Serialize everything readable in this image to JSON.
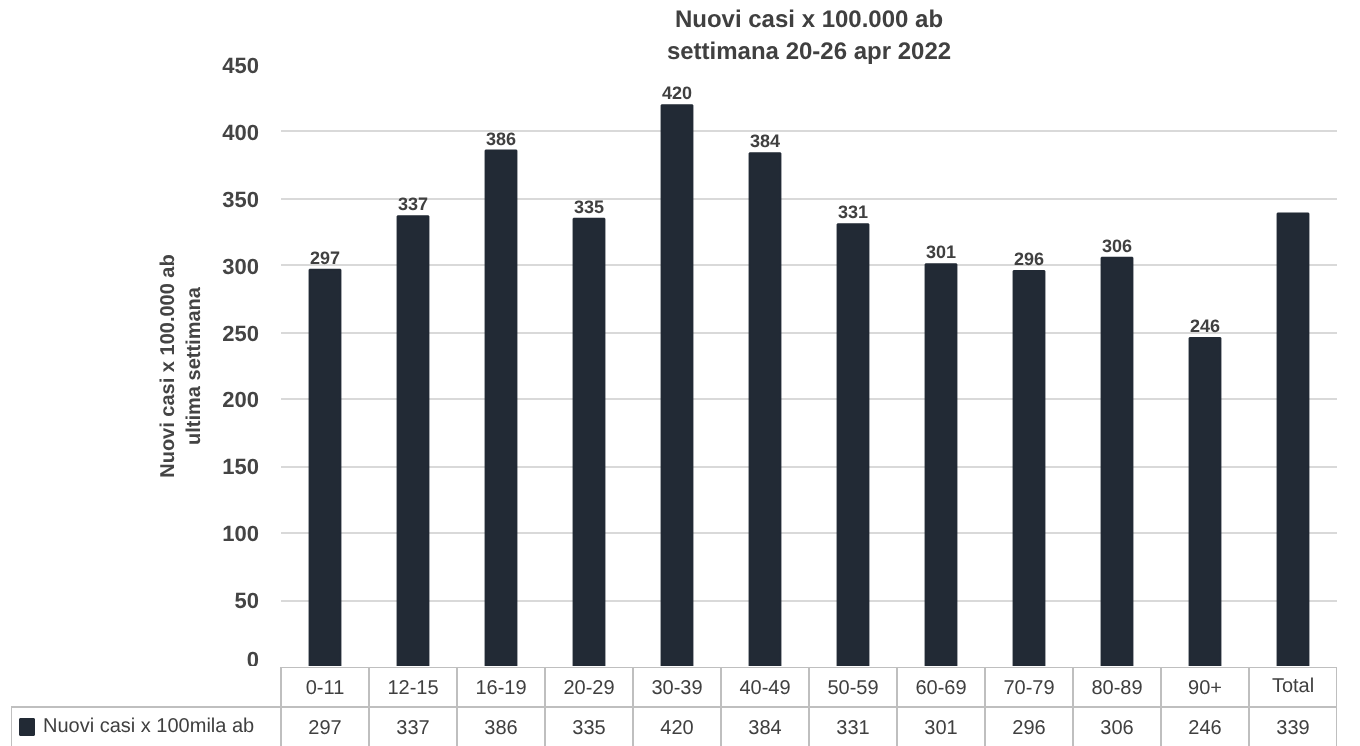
{
  "chart_data": {
    "type": "bar",
    "title": "Nuovi casi x 100.000 ab",
    "subtitle": "settimana 20-26 apr 2022",
    "ylabel": "Nuovi casi x 100.000 ab\nultima settimana",
    "categories": [
      "0-11",
      "12-15",
      "16-19",
      "20-29",
      "30-39",
      "40-49",
      "50-59",
      "60-69",
      "70-79",
      "80-89",
      "90+",
      "Total"
    ],
    "series": [
      {
        "name": "Nuovi casi x 100mila ab",
        "color": "#222a35",
        "values": [
          297,
          337,
          386,
          335,
          420,
          384,
          331,
          301,
          296,
          306,
          246,
          339
        ]
      }
    ],
    "annotations": [
      {
        "text": "297",
        "x": "0-11",
        "y": 297
      },
      {
        "text": "337",
        "x": "12-15",
        "y": 337
      },
      {
        "text": "386",
        "x": "16-19",
        "y": 386
      },
      {
        "text": "335",
        "x": "20-29",
        "y": 335
      },
      {
        "text": "420",
        "x": "30-39",
        "y": 420
      },
      {
        "text": "384",
        "x": "40-49",
        "y": 384
      },
      {
        "text": "331",
        "x": "50-59",
        "y": 331
      },
      {
        "text": "301",
        "x": "60-69",
        "y": 301
      },
      {
        "text": "296",
        "x": "70-79",
        "y": 296
      },
      {
        "text": "306",
        "x": "80-89",
        "y": 306
      },
      {
        "text": "246",
        "x": "90+",
        "y": 246
      }
    ],
    "ylim": [
      0,
      450
    ],
    "yticks": [
      0,
      50,
      100,
      150,
      200,
      250,
      300,
      350,
      400,
      450
    ],
    "grid": "y",
    "data_labels": true,
    "legend": "bottom left"
  }
}
